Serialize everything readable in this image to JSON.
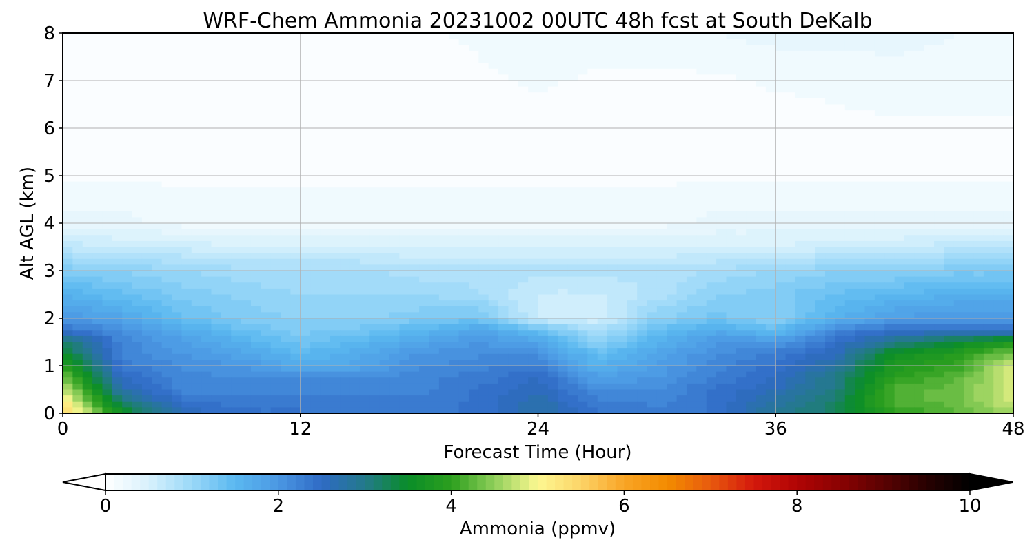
{
  "chart_data": {
    "type": "heatmap",
    "title": "WRF-Chem Ammonia  20231002 00UTC 48h fcst at South DeKalb",
    "xlabel": "Forecast Time (Hour)",
    "ylabel": "Alt AGL (km)",
    "xlim": [
      0,
      48
    ],
    "ylim": [
      0,
      8
    ],
    "x_ticks": [
      "0",
      "12",
      "24",
      "36",
      "48"
    ],
    "y_ticks": [
      "0",
      "1",
      "2",
      "3",
      "4",
      "5",
      "6",
      "7",
      "8"
    ],
    "grid": true,
    "x": [
      0,
      3,
      6,
      9,
      12,
      15,
      18,
      21,
      24,
      27,
      30,
      33,
      36,
      39,
      42,
      45,
      48
    ],
    "y": [
      0,
      0.25,
      0.5,
      0.75,
      1.0,
      1.25,
      1.5,
      1.75,
      2.0,
      2.5,
      3.0,
      3.5,
      4.0,
      5.0,
      6.0,
      7.0,
      8.0
    ],
    "z": [
      [
        5.6,
        3.6,
        2.6,
        2.4,
        2.4,
        2.3,
        2.3,
        2.4,
        2.8,
        2.4,
        2.3,
        2.4,
        2.9,
        3.2,
        4.0,
        4.2,
        4.6
      ],
      [
        5.2,
        3.1,
        2.4,
        2.3,
        2.3,
        2.3,
        2.3,
        2.4,
        2.7,
        2.3,
        2.2,
        2.4,
        2.8,
        3.2,
        4.2,
        4.3,
        4.8
      ],
      [
        4.8,
        2.7,
        2.2,
        2.2,
        2.2,
        2.2,
        2.2,
        2.4,
        2.6,
        2.1,
        2.1,
        2.4,
        2.6,
        3.0,
        4.2,
        4.3,
        4.8
      ],
      [
        4.4,
        2.5,
        2.2,
        2.1,
        2.1,
        2.1,
        2.2,
        2.3,
        2.5,
        1.9,
        2.0,
        2.3,
        2.5,
        3.0,
        4.0,
        4.2,
        4.9
      ],
      [
        4.0,
        2.3,
        2.1,
        2.0,
        1.7,
        1.8,
        2.1,
        2.2,
        2.3,
        1.6,
        1.9,
        2.2,
        2.4,
        2.8,
        3.8,
        4.0,
        4.8
      ],
      [
        3.5,
        2.2,
        2.0,
        1.8,
        1.5,
        1.7,
        2.0,
        2.1,
        2.1,
        1.4,
        1.8,
        2.1,
        2.3,
        2.6,
        3.6,
        3.9,
        4.4
      ],
      [
        3.2,
        2.2,
        1.9,
        1.6,
        1.3,
        1.5,
        1.8,
        2.0,
        1.8,
        1.1,
        1.6,
        2.0,
        2.0,
        2.4,
        3.0,
        3.4,
        3.8
      ],
      [
        2.4,
        2.1,
        1.7,
        1.4,
        1.2,
        1.3,
        1.5,
        1.8,
        1.4,
        0.8,
        1.4,
        1.7,
        1.4,
        2.2,
        2.4,
        2.5,
        2.4
      ],
      [
        2.0,
        1.8,
        1.4,
        1.2,
        1.1,
        1.1,
        1.2,
        1.3,
        0.6,
        0.5,
        1.1,
        1.3,
        1.1,
        1.6,
        1.9,
        2.0,
        2.0
      ],
      [
        1.6,
        1.4,
        1.2,
        1.1,
        1.0,
        1.0,
        1.0,
        0.9,
        0.6,
        0.6,
        0.8,
        1.1,
        1.2,
        1.4,
        1.5,
        1.6,
        1.6
      ],
      [
        1.2,
        1.1,
        1.0,
        0.9,
        0.9,
        0.9,
        0.8,
        0.8,
        0.8,
        0.8,
        0.8,
        0.9,
        1.0,
        1.1,
        1.1,
        1.2,
        1.2
      ],
      [
        0.7,
        0.6,
        0.6,
        0.5,
        0.5,
        0.5,
        0.5,
        0.5,
        0.5,
        0.5,
        0.5,
        0.5,
        0.5,
        0.6,
        0.6,
        0.7,
        0.7
      ],
      [
        0.3,
        0.3,
        0.2,
        0.2,
        0.2,
        0.2,
        0.2,
        0.2,
        0.2,
        0.2,
        0.2,
        0.3,
        0.3,
        0.3,
        0.3,
        0.3,
        0.3
      ],
      [
        0.1,
        0.1,
        0.1,
        0.1,
        0.1,
        0.1,
        0.1,
        0.1,
        0.1,
        0.1,
        0.1,
        0.1,
        0.1,
        0.1,
        0.1,
        0.1,
        0.1
      ],
      [
        0.05,
        0.05,
        0.05,
        0.05,
        0.05,
        0.05,
        0.05,
        0.05,
        0.05,
        0.05,
        0.05,
        0.05,
        0.05,
        0.1,
        0.1,
        0.1,
        0.1
      ],
      [
        0.05,
        0.05,
        0.05,
        0.05,
        0.05,
        0.05,
        0.05,
        0.1,
        0.15,
        0.1,
        0.1,
        0.1,
        0.15,
        0.15,
        0.2,
        0.2,
        0.2
      ],
      [
        0.05,
        0.05,
        0.05,
        0.05,
        0.05,
        0.1,
        0.1,
        0.15,
        0.2,
        0.2,
        0.2,
        0.25,
        0.3,
        0.3,
        0.3,
        0.25,
        0.2
      ]
    ],
    "colorbar": {
      "label": "Ammonia  (ppmv)",
      "range": [
        0,
        10
      ],
      "ticks": [
        "0",
        "2",
        "4",
        "6",
        "8",
        "10"
      ],
      "extend": "both",
      "stops": [
        {
          "v": 0.0,
          "c": "#ffffff"
        },
        {
          "v": 0.5,
          "c": "#d8f1fc"
        },
        {
          "v": 1.0,
          "c": "#9ad8f8"
        },
        {
          "v": 1.5,
          "c": "#5ab8f0"
        },
        {
          "v": 2.0,
          "c": "#4b98e3"
        },
        {
          "v": 2.5,
          "c": "#2f6ac5"
        },
        {
          "v": 3.0,
          "c": "#237a8a"
        },
        {
          "v": 3.5,
          "c": "#0a8d28"
        },
        {
          "v": 4.0,
          "c": "#2c9f1e"
        },
        {
          "v": 4.5,
          "c": "#8fcf5a"
        },
        {
          "v": 5.0,
          "c": "#fdf891"
        },
        {
          "v": 5.5,
          "c": "#fcd468"
        },
        {
          "v": 6.0,
          "c": "#f9a425"
        },
        {
          "v": 6.5,
          "c": "#f38c00"
        },
        {
          "v": 7.0,
          "c": "#e85a0e"
        },
        {
          "v": 7.5,
          "c": "#d4180c"
        },
        {
          "v": 8.0,
          "c": "#b00404"
        },
        {
          "v": 8.5,
          "c": "#8a0202"
        },
        {
          "v": 9.0,
          "c": "#5a0202"
        },
        {
          "v": 9.5,
          "c": "#280101"
        },
        {
          "v": 10.0,
          "c": "#000000"
        }
      ]
    }
  }
}
